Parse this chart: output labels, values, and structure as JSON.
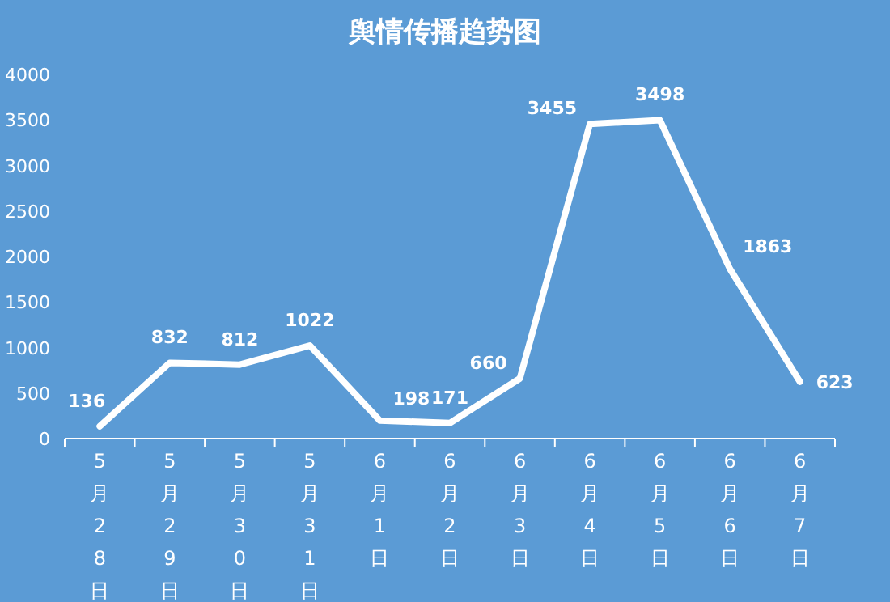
{
  "chart_data": {
    "type": "line",
    "title": "舆情传播趋势图",
    "categories": [
      "5月28日",
      "5月29日",
      "5月30日",
      "5月31日",
      "6月1日",
      "6月2日",
      "6月3日",
      "6月4日",
      "6月5日",
      "6月6日",
      "6月7日"
    ],
    "series": [
      {
        "color": "#ffffff",
        "values": [
          136,
          832,
          812,
          1022,
          198,
          171,
          660,
          3455,
          3498,
          1863,
          623
        ]
      }
    ],
    "ylim": [
      0,
      4000
    ],
    "yticks": [
      0,
      500,
      1000,
      1500,
      2000,
      2500,
      3000,
      3500,
      4000
    ],
    "data_labels": true,
    "grid": false,
    "marker": "none",
    "line_style": "solid"
  }
}
